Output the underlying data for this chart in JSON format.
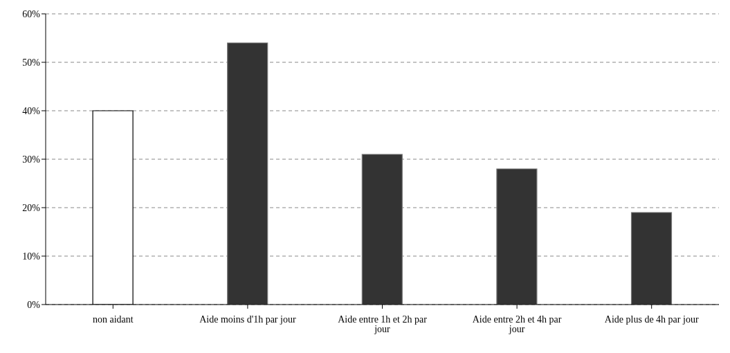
{
  "chart_data": {
    "type": "bar",
    "categories": [
      "non aidant",
      "Aide moins d'1h par jour",
      "Aide entre 1h et 2h par jour",
      "Aide entre 2h et 4h par jour",
      "Aide plus de 4h par jour"
    ],
    "values": [
      40,
      54,
      31,
      28,
      19
    ],
    "colors": [
      "#ffffff",
      "#333333",
      "#333333",
      "#333333",
      "#333333"
    ],
    "ylim": [
      0,
      60
    ],
    "yticks": [
      {
        "value": 0,
        "label": "0%"
      },
      {
        "value": 10,
        "label": "10%"
      },
      {
        "value": 20,
        "label": "20%"
      },
      {
        "value": 30,
        "label": "30%"
      },
      {
        "value": 40,
        "label": "40%"
      },
      {
        "value": 50,
        "label": "50%"
      },
      {
        "value": 60,
        "label": "60%"
      }
    ],
    "grid": "y"
  }
}
